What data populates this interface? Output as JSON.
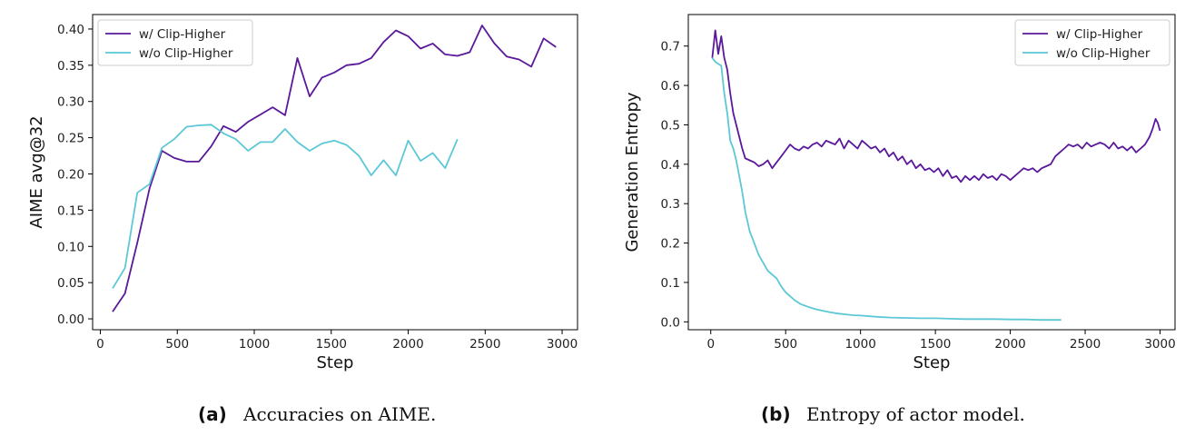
{
  "colors": {
    "with": "#5a189a",
    "without": "#5cc8d6"
  },
  "chart_data": [
    {
      "type": "line",
      "xlabel": "Step",
      "ylabel": "AIME avg@32",
      "xlim": [
        -50,
        3100
      ],
      "ylim": [
        -0.015,
        0.42
      ],
      "xticks": [
        0,
        500,
        1000,
        1500,
        2000,
        2500,
        3000
      ],
      "xtick_labels": [
        "0",
        "500",
        "1000",
        "1500",
        "2000",
        "2500",
        "3000"
      ],
      "yticks": [
        0.0,
        0.05,
        0.1,
        0.15,
        0.2,
        0.25,
        0.3,
        0.35,
        0.4
      ],
      "ytick_labels": [
        "0.00",
        "0.05",
        "0.10",
        "0.15",
        "0.20",
        "0.25",
        "0.30",
        "0.35",
        "0.40"
      ],
      "legend_position": "top-left",
      "caption_letter": "(a)",
      "caption_text": "Accuracies on AIME.",
      "series": [
        {
          "name": "w/ Clip-Higher",
          "color_key": "with",
          "x": [
            80,
            160,
            240,
            320,
            400,
            480,
            560,
            640,
            720,
            800,
            880,
            960,
            1040,
            1120,
            1200,
            1280,
            1360,
            1440,
            1520,
            1600,
            1680,
            1760,
            1840,
            1920,
            2000,
            2080,
            2160,
            2240,
            2320,
            2400,
            2480,
            2560,
            2640,
            2720,
            2800,
            2880,
            2960
          ],
          "y": [
            0.01,
            0.035,
            0.105,
            0.18,
            0.232,
            0.222,
            0.217,
            0.217,
            0.238,
            0.266,
            0.258,
            0.272,
            0.282,
            0.292,
            0.281,
            0.36,
            0.307,
            0.333,
            0.34,
            0.35,
            0.352,
            0.36,
            0.382,
            0.398,
            0.39,
            0.373,
            0.38,
            0.365,
            0.363,
            0.368,
            0.405,
            0.38,
            0.362,
            0.358,
            0.348,
            0.387,
            0.375
          ]
        },
        {
          "name": "w/o Clip-Higher",
          "color_key": "without",
          "x": [
            80,
            160,
            240,
            320,
            400,
            480,
            560,
            640,
            720,
            800,
            880,
            960,
            1040,
            1120,
            1200,
            1280,
            1360,
            1440,
            1520,
            1600,
            1680,
            1760,
            1840,
            1920,
            2000,
            2080,
            2160,
            2240,
            2320
          ],
          "y": [
            0.042,
            0.07,
            0.174,
            0.186,
            0.236,
            0.248,
            0.265,
            0.267,
            0.268,
            0.256,
            0.248,
            0.232,
            0.244,
            0.244,
            0.262,
            0.244,
            0.232,
            0.242,
            0.246,
            0.24,
            0.225,
            0.198,
            0.219,
            0.198,
            0.246,
            0.218,
            0.229,
            0.208,
            0.248
          ]
        }
      ]
    },
    {
      "type": "line",
      "xlabel": "Step",
      "ylabel": "Generation Entropy",
      "xlim": [
        -150,
        3100
      ],
      "ylim": [
        -0.02,
        0.78
      ],
      "xticks": [
        0,
        500,
        1000,
        1500,
        2000,
        2500,
        3000
      ],
      "xtick_labels": [
        "0",
        "500",
        "1000",
        "1500",
        "2000",
        "2500",
        "3000"
      ],
      "yticks": [
        0.0,
        0.1,
        0.2,
        0.3,
        0.4,
        0.5,
        0.6,
        0.7
      ],
      "ytick_labels": [
        "0.0",
        "0.1",
        "0.2",
        "0.3",
        "0.4",
        "0.5",
        "0.6",
        "0.7"
      ],
      "legend_position": "top-right",
      "caption_letter": "(b)",
      "caption_text": "Entropy of actor model.",
      "series": [
        {
          "name": "w/ Clip-Higher",
          "color_key": "with",
          "x": [
            10,
            30,
            50,
            70,
            90,
            110,
            130,
            150,
            170,
            190,
            210,
            230,
            260,
            290,
            320,
            350,
            380,
            410,
            440,
            470,
            500,
            530,
            560,
            590,
            620,
            650,
            680,
            710,
            740,
            770,
            800,
            830,
            860,
            890,
            920,
            950,
            980,
            1010,
            1040,
            1070,
            1100,
            1130,
            1160,
            1190,
            1220,
            1250,
            1280,
            1310,
            1340,
            1370,
            1400,
            1430,
            1460,
            1490,
            1520,
            1550,
            1580,
            1610,
            1640,
            1670,
            1700,
            1730,
            1760,
            1790,
            1820,
            1850,
            1880,
            1910,
            1940,
            1970,
            2000,
            2030,
            2060,
            2090,
            2120,
            2150,
            2180,
            2210,
            2240,
            2270,
            2300,
            2330,
            2360,
            2390,
            2420,
            2450,
            2480,
            2510,
            2540,
            2570,
            2600,
            2630,
            2660,
            2690,
            2720,
            2750,
            2780,
            2810,
            2840,
            2870,
            2900,
            2930,
            2950,
            2970,
            2985,
            3000
          ],
          "y": [
            0.67,
            0.74,
            0.68,
            0.725,
            0.67,
            0.64,
            0.58,
            0.53,
            0.5,
            0.47,
            0.44,
            0.415,
            0.41,
            0.405,
            0.395,
            0.4,
            0.41,
            0.39,
            0.405,
            0.42,
            0.435,
            0.45,
            0.44,
            0.435,
            0.445,
            0.44,
            0.45,
            0.455,
            0.445,
            0.46,
            0.455,
            0.45,
            0.465,
            0.44,
            0.46,
            0.45,
            0.44,
            0.46,
            0.45,
            0.44,
            0.445,
            0.43,
            0.44,
            0.42,
            0.43,
            0.41,
            0.42,
            0.4,
            0.41,
            0.39,
            0.4,
            0.385,
            0.39,
            0.38,
            0.39,
            0.37,
            0.385,
            0.365,
            0.37,
            0.355,
            0.37,
            0.36,
            0.37,
            0.36,
            0.375,
            0.365,
            0.37,
            0.36,
            0.375,
            0.37,
            0.36,
            0.37,
            0.38,
            0.39,
            0.385,
            0.39,
            0.38,
            0.39,
            0.395,
            0.4,
            0.42,
            0.43,
            0.44,
            0.45,
            0.445,
            0.45,
            0.44,
            0.455,
            0.445,
            0.45,
            0.455,
            0.45,
            0.44,
            0.455,
            0.44,
            0.445,
            0.435,
            0.445,
            0.43,
            0.44,
            0.45,
            0.47,
            0.49,
            0.515,
            0.505,
            0.485
          ]
        },
        {
          "name": "w/o Clip-Higher",
          "color_key": "without",
          "x": [
            10,
            30,
            50,
            70,
            90,
            110,
            130,
            150,
            170,
            190,
            210,
            230,
            260,
            290,
            320,
            350,
            380,
            410,
            440,
            470,
            500,
            530,
            560,
            600,
            650,
            700,
            750,
            800,
            850,
            900,
            950,
            1000,
            1100,
            1200,
            1300,
            1400,
            1500,
            1600,
            1700,
            1800,
            1900,
            2000,
            2100,
            2200,
            2340
          ],
          "y": [
            0.67,
            0.66,
            0.655,
            0.65,
            0.58,
            0.53,
            0.46,
            0.44,
            0.41,
            0.37,
            0.33,
            0.28,
            0.23,
            0.2,
            0.17,
            0.15,
            0.13,
            0.12,
            0.11,
            0.09,
            0.075,
            0.065,
            0.055,
            0.045,
            0.038,
            0.032,
            0.028,
            0.024,
            0.021,
            0.019,
            0.017,
            0.016,
            0.013,
            0.011,
            0.01,
            0.009,
            0.009,
            0.008,
            0.007,
            0.007,
            0.007,
            0.006,
            0.006,
            0.005,
            0.005
          ]
        }
      ]
    }
  ]
}
